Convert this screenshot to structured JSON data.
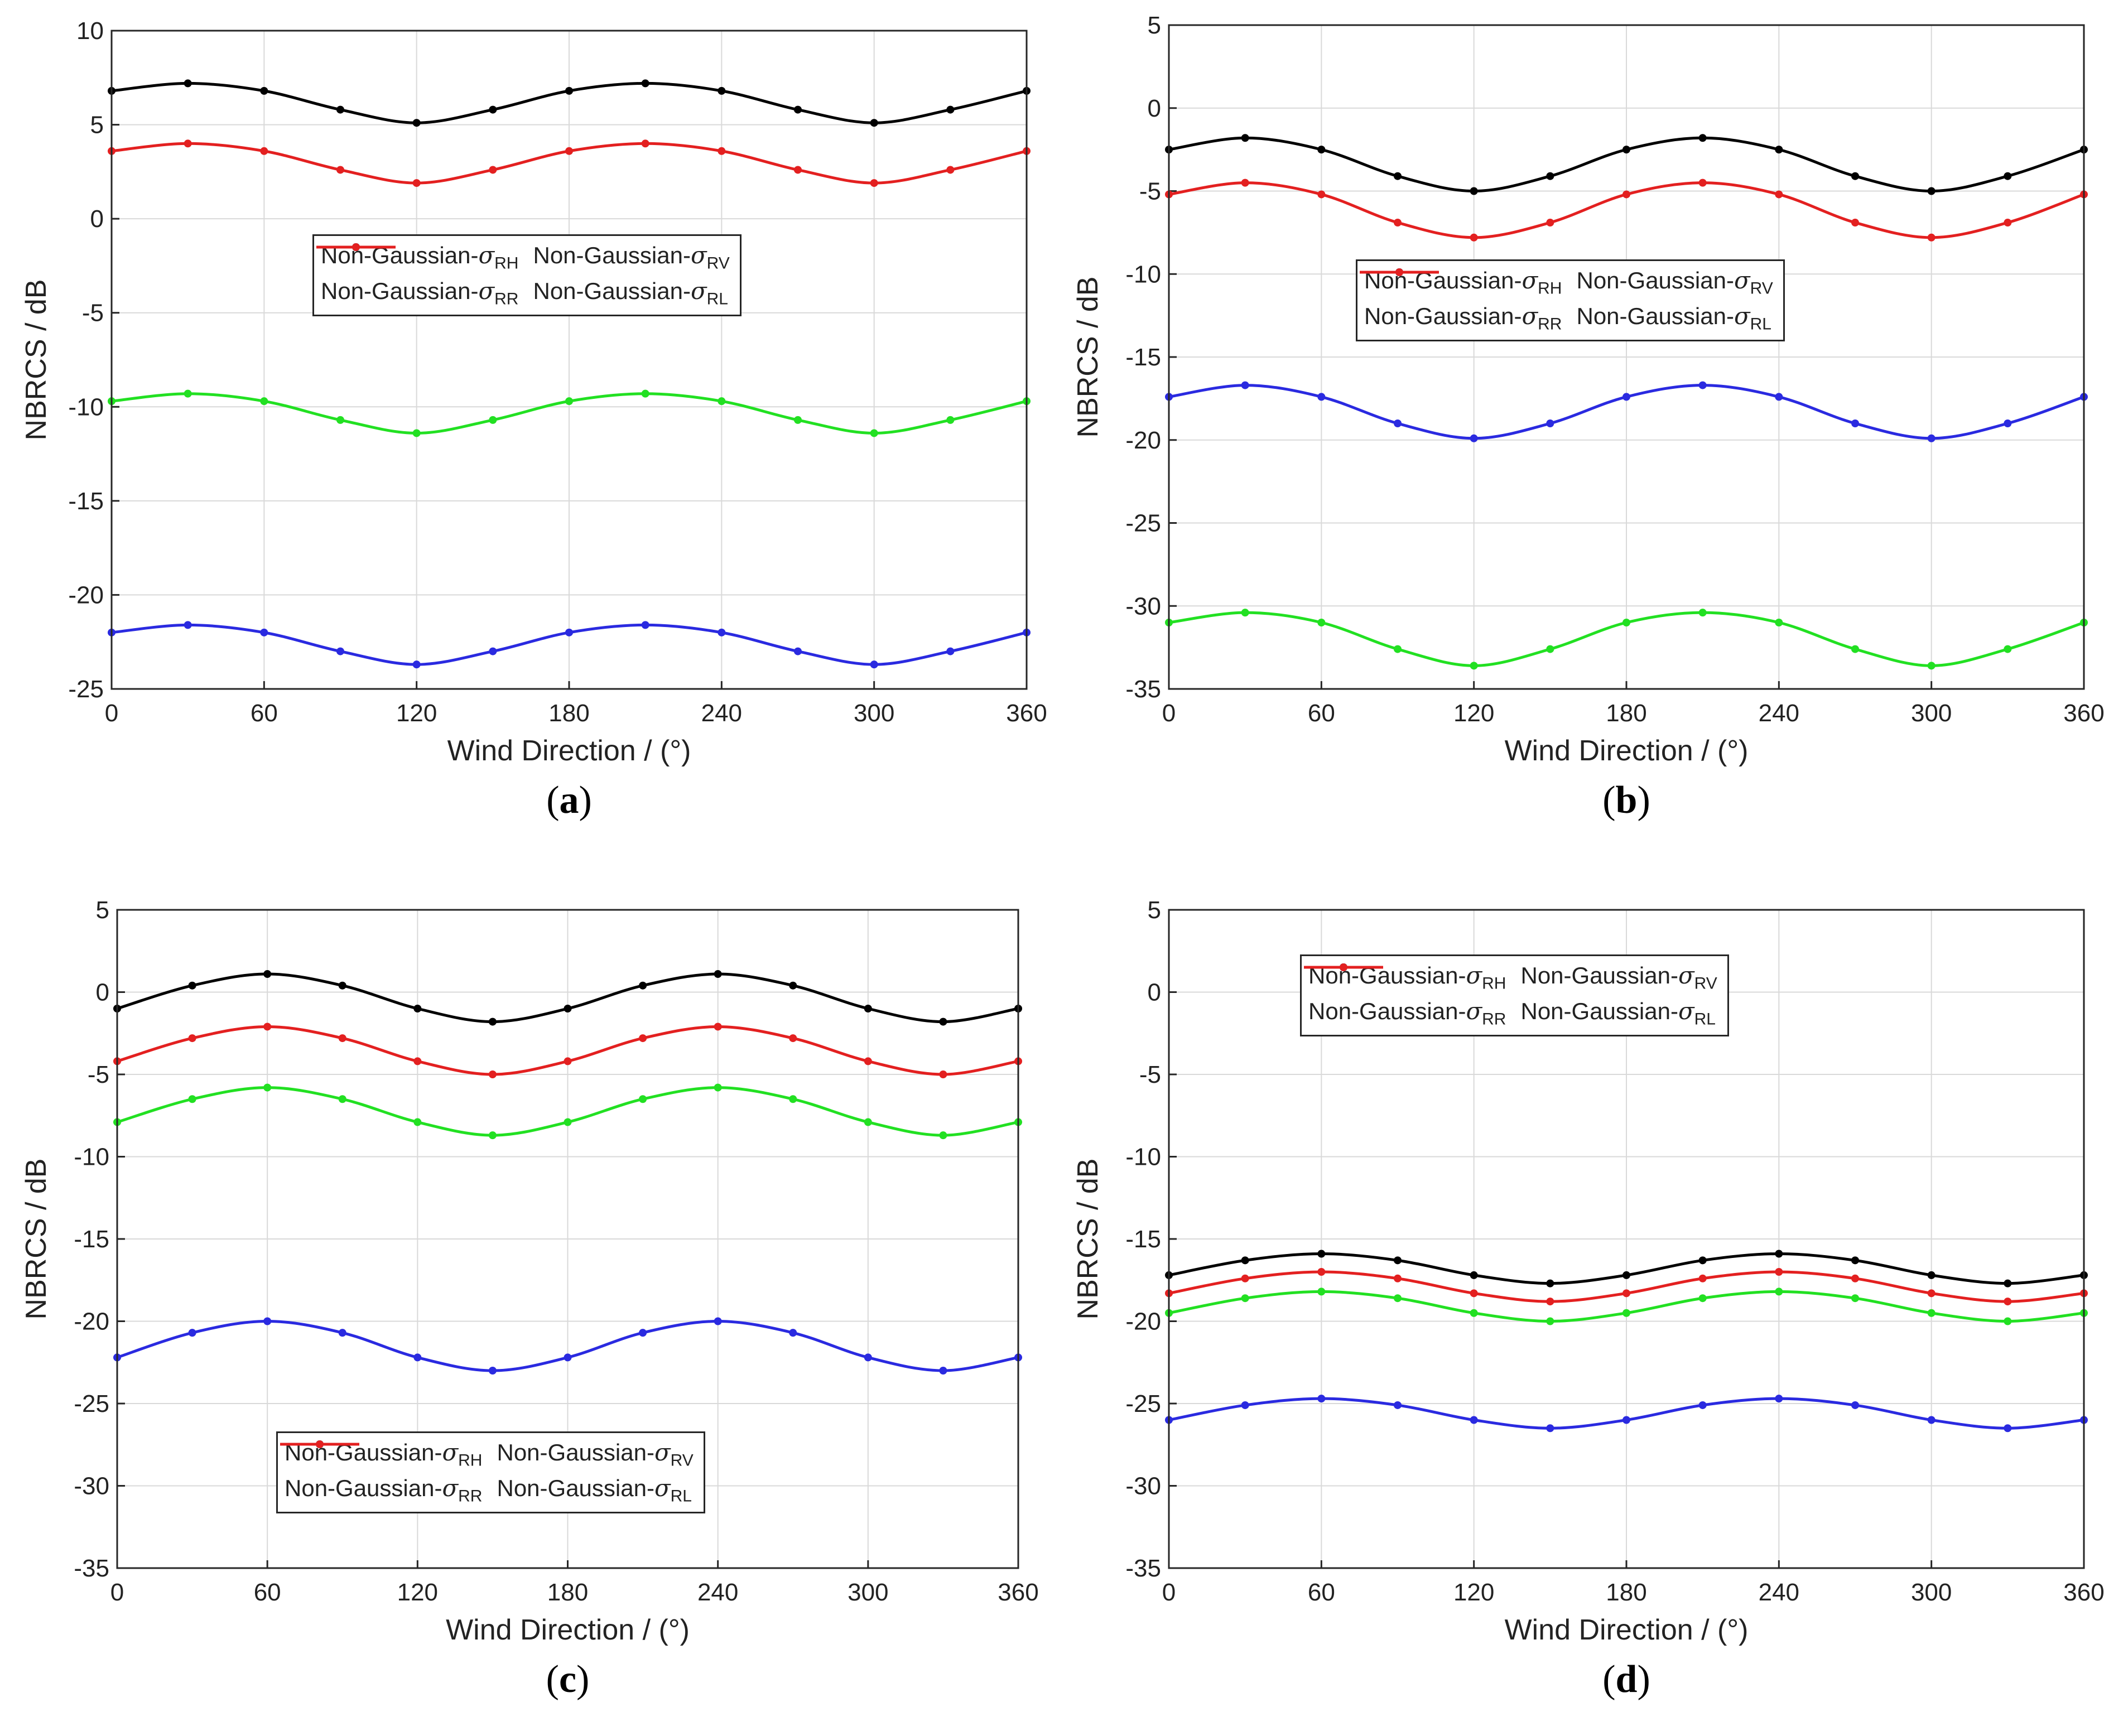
{
  "colors": {
    "rh": "#000000",
    "rv": "#22e022",
    "rr": "#2a2ae0",
    "rl": "#e32020",
    "grid": "#d9d9d9",
    "axis": "#262626"
  },
  "legend_prefix": "Non-Gaussian-",
  "legend_symbol": "σ",
  "chart_data": [
    {
      "id": "a",
      "type": "line",
      "caption": "a",
      "xlabel": "Wind Direction / (°)",
      "ylabel": "NBRCS / dB",
      "xlim": [
        0,
        360
      ],
      "ylim": [
        -25,
        10
      ],
      "xticks": [
        "0",
        "60",
        "120",
        "180",
        "240",
        "300",
        "360"
      ],
      "yticks": [
        "10",
        "5",
        "0",
        "-5",
        "-10",
        "-15",
        "-20",
        "-25"
      ],
      "grid": true,
      "legend_position": "upper-right",
      "x": [
        0,
        30,
        60,
        90,
        120,
        150,
        180,
        210,
        240,
        270,
        300,
        330,
        360
      ],
      "series": [
        {
          "key": "rh",
          "name": "Non-Gaussian-σRH",
          "sub": "RH",
          "values": [
            6.8,
            7.2,
            6.8,
            5.8,
            5.1,
            5.8,
            6.8,
            7.2,
            6.8,
            5.8,
            5.1,
            5.8,
            6.8
          ]
        },
        {
          "key": "rv",
          "name": "Non-Gaussian-σRV",
          "sub": "RV",
          "values": [
            -9.7,
            -9.3,
            -9.7,
            -10.7,
            -11.4,
            -10.7,
            -9.7,
            -9.3,
            -9.7,
            -10.7,
            -11.4,
            -10.7,
            -9.7
          ]
        },
        {
          "key": "rr",
          "name": "Non-Gaussian-σRR",
          "sub": "RR",
          "values": [
            -22.0,
            -21.6,
            -22.0,
            -23.0,
            -23.7,
            -23.0,
            -22.0,
            -21.6,
            -22.0,
            -23.0,
            -23.7,
            -23.0,
            -22.0
          ]
        },
        {
          "key": "rl",
          "name": "Non-Gaussian-σRL",
          "sub": "RL",
          "values": [
            3.6,
            4.0,
            3.6,
            2.6,
            1.9,
            2.6,
            3.6,
            4.0,
            3.6,
            2.6,
            1.9,
            2.6,
            3.6
          ]
        }
      ]
    },
    {
      "id": "b",
      "type": "line",
      "caption": "b",
      "xlabel": "Wind Direction / (°)",
      "ylabel": "NBRCS / dB",
      "xlim": [
        0,
        360
      ],
      "ylim": [
        -35,
        5
      ],
      "xticks": [
        "0",
        "60",
        "120",
        "180",
        "240",
        "300",
        "360"
      ],
      "yticks": [
        "5",
        "0",
        "-5",
        "-10",
        "-15",
        "-20",
        "-25",
        "-30",
        "-35"
      ],
      "grid": true,
      "legend_position": "upper-right",
      "x": [
        0,
        30,
        60,
        90,
        120,
        150,
        180,
        210,
        240,
        270,
        300,
        330,
        360
      ],
      "series": [
        {
          "key": "rh",
          "name": "Non-Gaussian-σRH",
          "sub": "RH",
          "values": [
            -2.5,
            -1.8,
            -2.5,
            -4.1,
            -5.0,
            -4.1,
            -2.5,
            -1.8,
            -2.5,
            -4.1,
            -5.0,
            -4.1,
            -2.5
          ]
        },
        {
          "key": "rv",
          "name": "Non-Gaussian-σRV",
          "sub": "RV",
          "values": [
            -31.0,
            -30.4,
            -31.0,
            -32.6,
            -33.6,
            -32.6,
            -31.0,
            -30.4,
            -31.0,
            -32.6,
            -33.6,
            -32.6,
            -31.0
          ]
        },
        {
          "key": "rr",
          "name": "Non-Gaussian-σRR",
          "sub": "RR",
          "values": [
            -17.4,
            -16.7,
            -17.4,
            -19.0,
            -19.9,
            -19.0,
            -17.4,
            -16.7,
            -17.4,
            -19.0,
            -19.9,
            -19.0,
            -17.4
          ]
        },
        {
          "key": "rl",
          "name": "Non-Gaussian-σRL",
          "sub": "RL",
          "values": [
            -5.2,
            -4.5,
            -5.2,
            -6.9,
            -7.8,
            -6.9,
            -5.2,
            -4.5,
            -5.2,
            -6.9,
            -7.8,
            -6.9,
            -5.2
          ]
        }
      ]
    },
    {
      "id": "c",
      "type": "line",
      "caption": "c",
      "xlabel": "Wind Direction / (°)",
      "ylabel": "NBRCS / dB",
      "xlim": [
        0,
        360
      ],
      "ylim": [
        -35,
        5
      ],
      "xticks": [
        "0",
        "60",
        "120",
        "180",
        "240",
        "300",
        "360"
      ],
      "yticks": [
        "5",
        "0",
        "-5",
        "-10",
        "-15",
        "-20",
        "-25",
        "-30",
        "-35"
      ],
      "grid": true,
      "legend_position": "lower-right",
      "x": [
        0,
        30,
        60,
        90,
        120,
        150,
        180,
        210,
        240,
        270,
        300,
        330,
        360
      ],
      "series": [
        {
          "key": "rh",
          "name": "Non-Gaussian-σRH",
          "sub": "RH",
          "values": [
            -1.0,
            0.4,
            1.1,
            0.4,
            -1.0,
            -1.8,
            -1.0,
            0.4,
            1.1,
            0.4,
            -1.0,
            -1.8,
            -1.0
          ]
        },
        {
          "key": "rv",
          "name": "Non-Gaussian-σRV",
          "sub": "RV",
          "values": [
            -7.9,
            -6.5,
            -5.8,
            -6.5,
            -7.9,
            -8.7,
            -7.9,
            -6.5,
            -5.8,
            -6.5,
            -7.9,
            -8.7,
            -7.9
          ]
        },
        {
          "key": "rr",
          "name": "Non-Gaussian-σRR",
          "sub": "RR",
          "values": [
            -22.2,
            -20.7,
            -20.0,
            -20.7,
            -22.2,
            -23.0,
            -22.2,
            -20.7,
            -20.0,
            -20.7,
            -22.2,
            -23.0,
            -22.2
          ]
        },
        {
          "key": "rl",
          "name": "Non-Gaussian-σRL",
          "sub": "RL",
          "values": [
            -4.2,
            -2.8,
            -2.1,
            -2.8,
            -4.2,
            -5.0,
            -4.2,
            -2.8,
            -2.1,
            -2.8,
            -4.2,
            -5.0,
            -4.2
          ]
        }
      ]
    },
    {
      "id": "d",
      "type": "line",
      "caption": "d",
      "xlabel": "Wind Direction / (°)",
      "ylabel": "NBRCS / dB",
      "xlim": [
        0,
        360
      ],
      "ylim": [
        -35,
        5
      ],
      "xticks": [
        "0",
        "60",
        "120",
        "180",
        "240",
        "300",
        "360"
      ],
      "yticks": [
        "5",
        "0",
        "-5",
        "-10",
        "-15",
        "-20",
        "-25",
        "-30",
        "-35"
      ],
      "grid": true,
      "legend_position": "upper-right",
      "x": [
        0,
        30,
        60,
        90,
        120,
        150,
        180,
        210,
        240,
        270,
        300,
        330,
        360
      ],
      "series": [
        {
          "key": "rh",
          "name": "Non-Gaussian-σRH",
          "sub": "RH",
          "values": [
            -17.2,
            -16.3,
            -15.9,
            -16.3,
            -17.2,
            -17.7,
            -17.2,
            -16.3,
            -15.9,
            -16.3,
            -17.2,
            -17.7,
            -17.2
          ]
        },
        {
          "key": "rv",
          "name": "Non-Gaussian-σRV",
          "sub": "RV",
          "values": [
            -19.5,
            -18.6,
            -18.2,
            -18.6,
            -19.5,
            -20.0,
            -19.5,
            -18.6,
            -18.2,
            -18.6,
            -19.5,
            -20.0,
            -19.5
          ]
        },
        {
          "key": "rr",
          "name": "Non-Gaussian-σRR",
          "sub": "RR",
          "values": [
            -26.0,
            -25.1,
            -24.7,
            -25.1,
            -26.0,
            -26.5,
            -26.0,
            -25.1,
            -24.7,
            -25.1,
            -26.0,
            -26.5,
            -26.0
          ]
        },
        {
          "key": "rl",
          "name": "Non-Gaussian-σRL",
          "sub": "RL",
          "values": [
            -18.3,
            -17.4,
            -17.0,
            -17.4,
            -18.3,
            -18.8,
            -18.3,
            -17.4,
            -17.0,
            -17.4,
            -18.3,
            -18.8,
            -18.3
          ]
        }
      ]
    }
  ]
}
